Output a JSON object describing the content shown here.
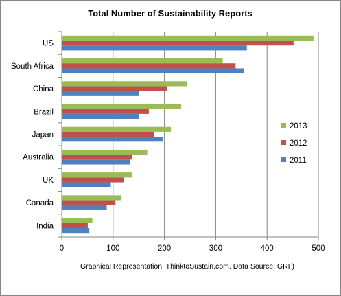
{
  "chart_data": {
    "type": "bar",
    "orientation": "horizontal",
    "title": "Total Number of Sustainability Reports",
    "xlabel": "",
    "ylabel": "",
    "caption": "Graphical Representation: ThinktoSustain.com. Data Source: GRI )",
    "categories": [
      "US",
      "South Africa",
      "China",
      "Brazil",
      "Japan",
      "Australia",
      "UK",
      "Canada",
      "India"
    ],
    "series": [
      {
        "name": "2013",
        "color": "#9BBB59",
        "values": [
          490,
          313,
          243,
          232,
          212,
          166,
          137,
          115,
          59
        ]
      },
      {
        "name": "2012",
        "color": "#C0504D",
        "values": [
          451,
          338,
          204,
          169,
          179,
          136,
          121,
          104,
          50
        ]
      },
      {
        "name": "2011",
        "color": "#4F81BD",
        "values": [
          360,
          354,
          150,
          150,
          196,
          132,
          95,
          87,
          53
        ]
      }
    ],
    "xlim": [
      0,
      500
    ],
    "xticks": [
      0,
      100,
      200,
      300,
      400,
      500
    ],
    "grid": "vertical",
    "legend_position": "right"
  }
}
